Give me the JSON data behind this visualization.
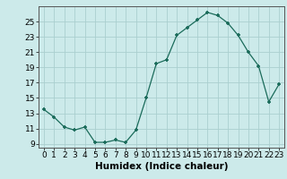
{
  "x": [
    0,
    1,
    2,
    3,
    4,
    5,
    6,
    7,
    8,
    9,
    10,
    11,
    12,
    13,
    14,
    15,
    16,
    17,
    18,
    19,
    20,
    21,
    22,
    23
  ],
  "y": [
    13.5,
    12.5,
    11.2,
    10.8,
    11.2,
    9.2,
    9.2,
    9.5,
    9.2,
    10.8,
    15.0,
    19.5,
    20.0,
    23.2,
    24.2,
    25.2,
    26.2,
    25.8,
    24.8,
    23.2,
    21.0,
    19.2,
    14.5,
    16.8
  ],
  "xlabel": "Humidex (Indice chaleur)",
  "bg_color": "#cceaea",
  "line_color": "#1a6b5a",
  "marker_color": "#1a6b5a",
  "grid_color": "#aacfcf",
  "ylim": [
    8.5,
    27
  ],
  "xlim": [
    -0.5,
    23.5
  ],
  "yticks": [
    9,
    11,
    13,
    15,
    17,
    19,
    21,
    23,
    25
  ],
  "xticks": [
    0,
    1,
    2,
    3,
    4,
    5,
    6,
    7,
    8,
    9,
    10,
    11,
    12,
    13,
    14,
    15,
    16,
    17,
    18,
    19,
    20,
    21,
    22,
    23
  ],
  "xlabel_fontsize": 7.5,
  "tick_fontsize": 6.5
}
